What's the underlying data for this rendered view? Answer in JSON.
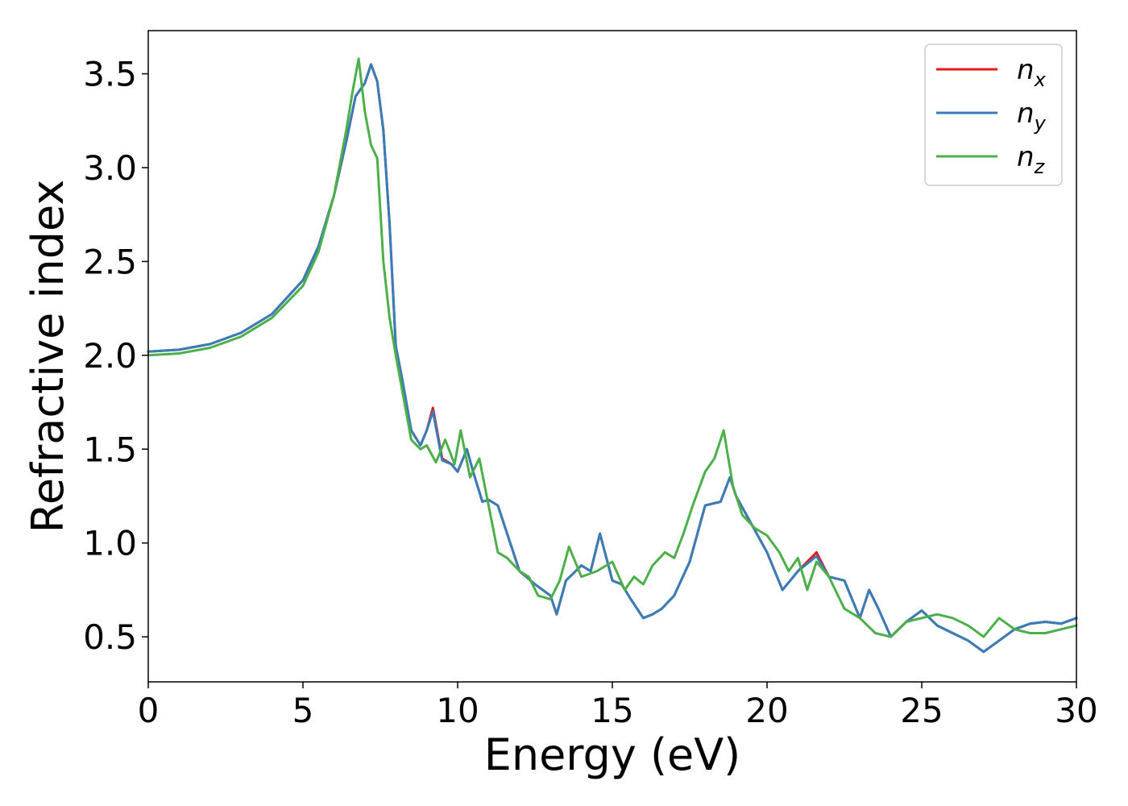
{
  "chart_data": {
    "type": "line",
    "title": "",
    "xlabel": "Energy (eV)",
    "ylabel": "Refractive index",
    "xlim": [
      0,
      30
    ],
    "ylim": [
      0.26,
      3.73
    ],
    "xticks": [
      0,
      5,
      10,
      15,
      20,
      25,
      30
    ],
    "xtick_labels": [
      "0",
      "5",
      "10",
      "15",
      "20",
      "25",
      "30"
    ],
    "yticks": [
      0.5,
      1.0,
      1.5,
      2.0,
      2.5,
      3.0,
      3.5
    ],
    "ytick_labels": [
      "0.5",
      "1.0",
      "1.5",
      "2.0",
      "2.5",
      "3.0",
      "3.5"
    ],
    "grid": false,
    "legend_position": "top-right",
    "series": [
      {
        "name": "n",
        "subscript": "x",
        "color": "#e41a1c",
        "x": [
          0,
          1,
          2,
          3,
          4,
          5,
          5.5,
          6,
          6.4,
          6.7,
          7.0,
          7.2,
          7.4,
          7.6,
          7.8,
          8.0,
          8.2,
          8.5,
          8.8,
          9.0,
          9.2,
          9.5,
          9.8,
          10.0,
          10.3,
          10.5,
          10.8,
          11.0,
          11.3,
          11.6,
          12.0,
          12.5,
          13.0,
          13.2,
          13.5,
          14.0,
          14.3,
          14.6,
          15.0,
          15.3,
          15.6,
          16.0,
          16.3,
          16.6,
          17.0,
          17.5,
          18.0,
          18.5,
          18.8,
          19.0,
          19.5,
          20.0,
          20.5,
          21.0,
          21.6,
          22.0,
          22.5,
          23.0,
          23.3,
          23.6,
          24.0,
          24.5,
          25.0,
          25.5,
          26.0,
          26.5,
          27.0,
          27.5,
          28.0,
          28.5,
          29.0,
          29.5,
          30.0
        ],
        "y": [
          2.02,
          2.03,
          2.06,
          2.12,
          2.22,
          2.4,
          2.58,
          2.85,
          3.14,
          3.38,
          3.45,
          3.55,
          3.46,
          3.2,
          2.7,
          2.05,
          1.88,
          1.6,
          1.52,
          1.6,
          1.72,
          1.45,
          1.42,
          1.38,
          1.5,
          1.38,
          1.22,
          1.23,
          1.2,
          1.05,
          0.85,
          0.78,
          0.72,
          0.62,
          0.8,
          0.88,
          0.85,
          1.05,
          0.8,
          0.78,
          0.7,
          0.6,
          0.62,
          0.65,
          0.72,
          0.9,
          1.2,
          1.22,
          1.35,
          1.25,
          1.1,
          0.95,
          0.75,
          0.85,
          0.95,
          0.82,
          0.8,
          0.6,
          0.75,
          0.65,
          0.5,
          0.58,
          0.64,
          0.56,
          0.52,
          0.48,
          0.42,
          0.48,
          0.54,
          0.57,
          0.58,
          0.57,
          0.6
        ]
      },
      {
        "name": "n",
        "subscript": "y",
        "color": "#377eb8",
        "x": [
          0,
          1,
          2,
          3,
          4,
          5,
          5.5,
          6,
          6.4,
          6.7,
          7.0,
          7.2,
          7.4,
          7.6,
          7.8,
          8.0,
          8.2,
          8.5,
          8.8,
          9.0,
          9.2,
          9.5,
          9.8,
          10.0,
          10.3,
          10.5,
          10.8,
          11.0,
          11.3,
          11.6,
          12.0,
          12.5,
          13.0,
          13.2,
          13.5,
          14.0,
          14.3,
          14.6,
          15.0,
          15.3,
          15.6,
          16.0,
          16.3,
          16.6,
          17.0,
          17.5,
          18.0,
          18.5,
          18.8,
          19.0,
          19.5,
          20.0,
          20.5,
          21.0,
          21.6,
          22.0,
          22.5,
          23.0,
          23.3,
          23.6,
          24.0,
          24.5,
          25.0,
          25.5,
          26.0,
          26.5,
          27.0,
          27.5,
          28.0,
          28.5,
          29.0,
          29.5,
          30.0
        ],
        "y": [
          2.02,
          2.03,
          2.06,
          2.12,
          2.22,
          2.4,
          2.58,
          2.85,
          3.14,
          3.38,
          3.45,
          3.55,
          3.46,
          3.2,
          2.7,
          2.05,
          1.88,
          1.6,
          1.52,
          1.6,
          1.7,
          1.44,
          1.42,
          1.38,
          1.5,
          1.38,
          1.22,
          1.23,
          1.2,
          1.05,
          0.85,
          0.78,
          0.72,
          0.62,
          0.8,
          0.88,
          0.85,
          1.05,
          0.8,
          0.78,
          0.7,
          0.6,
          0.62,
          0.65,
          0.72,
          0.9,
          1.2,
          1.22,
          1.35,
          1.25,
          1.1,
          0.95,
          0.75,
          0.85,
          0.93,
          0.82,
          0.8,
          0.6,
          0.75,
          0.65,
          0.5,
          0.58,
          0.64,
          0.56,
          0.52,
          0.48,
          0.42,
          0.48,
          0.54,
          0.57,
          0.58,
          0.57,
          0.6
        ]
      },
      {
        "name": "n",
        "subscript": "z",
        "color": "#4daf4a",
        "x": [
          0,
          1,
          2,
          3,
          4,
          5,
          5.5,
          6,
          6.4,
          6.6,
          6.8,
          7.0,
          7.2,
          7.4,
          7.6,
          7.8,
          8.0,
          8.2,
          8.5,
          8.8,
          9.0,
          9.3,
          9.6,
          9.9,
          10.1,
          10.4,
          10.7,
          11.0,
          11.3,
          11.6,
          12.0,
          12.3,
          12.6,
          13.0,
          13.3,
          13.6,
          14.0,
          14.5,
          15.0,
          15.4,
          15.7,
          16.0,
          16.3,
          16.7,
          17.0,
          17.3,
          17.6,
          18.0,
          18.3,
          18.6,
          18.9,
          19.2,
          19.6,
          20.0,
          20.4,
          20.7,
          21.0,
          21.3,
          21.6,
          22.0,
          22.5,
          23.0,
          23.5,
          24.0,
          24.5,
          25.0,
          25.5,
          26.0,
          26.5,
          27.0,
          27.5,
          28.0,
          28.5,
          29.0,
          29.5,
          30.0
        ],
        "y": [
          2.0,
          2.01,
          2.04,
          2.1,
          2.2,
          2.37,
          2.55,
          2.85,
          3.2,
          3.4,
          3.58,
          3.3,
          3.12,
          3.05,
          2.5,
          2.2,
          2.0,
          1.82,
          1.55,
          1.5,
          1.52,
          1.43,
          1.55,
          1.42,
          1.6,
          1.35,
          1.45,
          1.2,
          0.95,
          0.92,
          0.85,
          0.82,
          0.72,
          0.7,
          0.8,
          0.98,
          0.82,
          0.85,
          0.9,
          0.75,
          0.82,
          0.78,
          0.88,
          0.95,
          0.92,
          1.05,
          1.2,
          1.38,
          1.45,
          1.6,
          1.3,
          1.15,
          1.08,
          1.04,
          0.95,
          0.85,
          0.92,
          0.75,
          0.9,
          0.82,
          0.65,
          0.6,
          0.52,
          0.5,
          0.58,
          0.6,
          0.62,
          0.6,
          0.56,
          0.5,
          0.6,
          0.54,
          0.52,
          0.52,
          0.54,
          0.56
        ]
      }
    ]
  }
}
